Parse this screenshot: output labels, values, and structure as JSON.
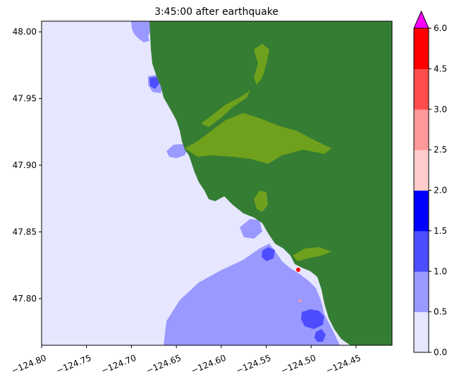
{
  "chart_data": {
    "type": "heatmap",
    "title": "3:45:00 after earthquake",
    "xlabel": "",
    "ylabel": "",
    "xlim": [
      -124.8,
      -124.41
    ],
    "ylim": [
      47.765,
      48.008
    ],
    "x_ticks": [
      -124.8,
      -124.75,
      -124.7,
      -124.65,
      -124.6,
      -124.55,
      -124.5,
      -124.45
    ],
    "x_tick_labels": [
      "−124.80",
      "−124.75",
      "−124.70",
      "−124.65",
      "−124.60",
      "−124.55",
      "−124.50",
      "−124.45"
    ],
    "y_ticks": [
      47.8,
      47.85,
      47.9,
      47.95,
      48.0
    ],
    "y_tick_labels": [
      "47.80",
      "47.85",
      "47.90",
      "47.95",
      "48.00"
    ],
    "x_tick_rotation": "angled",
    "grid": false,
    "colorbar": {
      "position": "right",
      "extend": "max",
      "levels": [
        0.0,
        0.5,
        1.0,
        1.5,
        2.0,
        2.5,
        3.0,
        4.5,
        6.0
      ],
      "level_labels": [
        "0.0",
        "0.5",
        "1.0",
        "1.5",
        "2.0",
        "2.5",
        "3.0",
        "4.5",
        "6.0"
      ],
      "colors": [
        "#e6e6ff",
        "#9999ff",
        "#4d4dff",
        "#0000ff",
        "#ffcccc",
        "#ff9999",
        "#ff4d4d",
        "#ff0000"
      ],
      "extend_color": "#ff00ff"
    },
    "region_colors": {
      "ocean_low": "#e6e6ff",
      "ocean_mid": "#9999ff",
      "ocean_high": "#4d4dff",
      "land": "#357d33",
      "inundated_land": "#6fa11c"
    }
  }
}
